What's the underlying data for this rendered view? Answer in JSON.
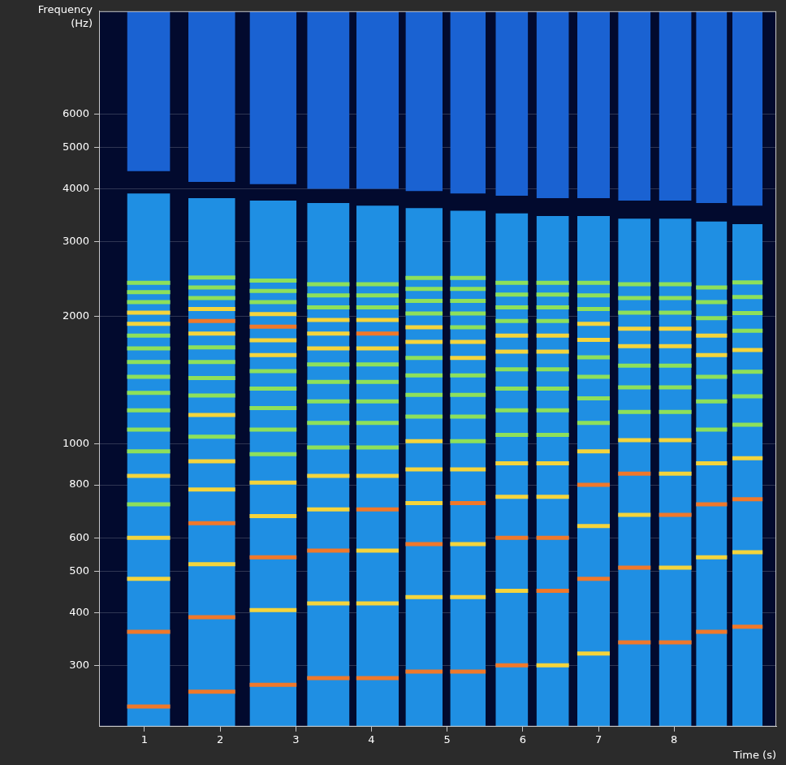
{
  "chart_data": {
    "type": "spectrogram",
    "x_label": "Time (s)",
    "y_label": "Frequency (Hz)",
    "xlim": [
      0.4,
      9.35
    ],
    "xticks": [
      1,
      2,
      3,
      4,
      5,
      6,
      7,
      8
    ],
    "ylim": [
      215,
      10500
    ],
    "yticks": [
      300,
      400,
      500,
      600,
      800,
      1000,
      2000,
      3000,
      4000,
      5000,
      6000
    ],
    "log": "y",
    "grid": true,
    "notes": [
      {
        "start": 0.77,
        "end": 1.34,
        "band": [
          215,
          3900
        ],
        "upper_band": [
          4400,
          10500
        ],
        "harmonics": [
          240,
          360,
          480,
          600,
          720,
          840,
          960,
          1080,
          1200,
          1320,
          1440,
          1560,
          1680,
          1800,
          1920,
          2040,
          2160,
          2280,
          2400
        ],
        "levels": [
          3,
          3,
          2,
          2,
          1,
          2,
          1,
          1,
          1,
          1,
          1,
          1,
          1,
          1,
          2,
          2,
          1,
          1,
          1
        ]
      },
      {
        "start": 1.58,
        "end": 2.2,
        "band": [
          215,
          3800
        ],
        "upper_band": [
          4150,
          10500
        ],
        "harmonics": [
          260,
          390,
          520,
          650,
          780,
          910,
          1040,
          1170,
          1300,
          1430,
          1560,
          1690,
          1820,
          1950,
          2080,
          2210,
          2340,
          2470
        ],
        "levels": [
          3,
          3,
          2,
          3,
          2,
          2,
          1,
          2,
          1,
          1,
          1,
          1,
          2,
          3,
          2,
          1,
          1,
          1
        ]
      },
      {
        "start": 2.39,
        "end": 3.01,
        "band": [
          215,
          3750
        ],
        "upper_band": [
          4100,
          10500
        ],
        "harmonics": [
          270,
          405,
          540,
          675,
          810,
          945,
          1080,
          1215,
          1350,
          1485,
          1620,
          1755,
          1890,
          2025,
          2160,
          2295,
          2430
        ],
        "levels": [
          3,
          2,
          3,
          2,
          2,
          1,
          1,
          1,
          1,
          1,
          2,
          2,
          3,
          2,
          1,
          1,
          1
        ]
      },
      {
        "start": 3.15,
        "end": 3.71,
        "band": [
          215,
          3700
        ],
        "upper_band": [
          4000,
          10500
        ],
        "harmonics": [
          280,
          420,
          560,
          700,
          840,
          980,
          1120,
          1260,
          1400,
          1540,
          1680,
          1820,
          1960,
          2100,
          2240,
          2380
        ],
        "levels": [
          3,
          2,
          3,
          2,
          2,
          1,
          1,
          1,
          1,
          1,
          2,
          2,
          2,
          1,
          1,
          1
        ]
      },
      {
        "start": 3.8,
        "end": 4.36,
        "band": [
          215,
          3650
        ],
        "upper_band": [
          4000,
          10500
        ],
        "harmonics": [
          280,
          420,
          560,
          700,
          840,
          980,
          1120,
          1260,
          1400,
          1540,
          1680,
          1820,
          1960,
          2100,
          2240,
          2380
        ],
        "levels": [
          3,
          2,
          2,
          3,
          2,
          1,
          1,
          1,
          1,
          1,
          2,
          3,
          2,
          1,
          1,
          1
        ]
      },
      {
        "start": 4.45,
        "end": 4.94,
        "band": [
          215,
          3600
        ],
        "upper_band": [
          3950,
          10500
        ],
        "harmonics": [
          290,
          435,
          580,
          725,
          870,
          1015,
          1160,
          1305,
          1450,
          1595,
          1740,
          1885,
          2030,
          2175,
          2320,
          2465
        ],
        "levels": [
          3,
          2,
          3,
          2,
          2,
          2,
          1,
          1,
          1,
          1,
          2,
          2,
          1,
          1,
          1,
          1
        ]
      },
      {
        "start": 5.04,
        "end": 5.51,
        "band": [
          215,
          3550
        ],
        "upper_band": [
          3900,
          10500
        ],
        "harmonics": [
          290,
          435,
          580,
          725,
          870,
          1015,
          1160,
          1305,
          1450,
          1595,
          1740,
          1885,
          2030,
          2175,
          2320,
          2465
        ],
        "levels": [
          3,
          2,
          2,
          3,
          2,
          1,
          1,
          1,
          1,
          2,
          2,
          1,
          1,
          1,
          1,
          1
        ]
      },
      {
        "start": 5.64,
        "end": 6.07,
        "band": [
          215,
          3500
        ],
        "upper_band": [
          3850,
          10500
        ],
        "harmonics": [
          300,
          450,
          600,
          750,
          900,
          1050,
          1200,
          1350,
          1500,
          1650,
          1800,
          1950,
          2100,
          2250,
          2400
        ],
        "levels": [
          3,
          2,
          3,
          2,
          2,
          1,
          1,
          1,
          1,
          2,
          2,
          1,
          1,
          1,
          1
        ]
      },
      {
        "start": 6.18,
        "end": 6.61,
        "band": [
          215,
          3450
        ],
        "upper_band": [
          3800,
          10500
        ],
        "harmonics": [
          300,
          450,
          600,
          750,
          900,
          1050,
          1200,
          1350,
          1500,
          1650,
          1800,
          1950,
          2100,
          2250,
          2400
        ],
        "levels": [
          2,
          3,
          3,
          2,
          2,
          1,
          1,
          1,
          1,
          2,
          2,
          1,
          1,
          1,
          1
        ]
      },
      {
        "start": 6.72,
        "end": 7.15,
        "band": [
          215,
          3450
        ],
        "upper_band": [
          3800,
          10500
        ],
        "harmonics": [
          320,
          480,
          640,
          800,
          960,
          1120,
          1280,
          1440,
          1600,
          1760,
          1920,
          2080,
          2240,
          2400
        ],
        "levels": [
          2,
          3,
          2,
          3,
          2,
          1,
          1,
          1,
          1,
          2,
          2,
          1,
          1,
          1
        ]
      },
      {
        "start": 7.26,
        "end": 7.69,
        "band": [
          215,
          3400
        ],
        "upper_band": [
          3750,
          10500
        ],
        "harmonics": [
          340,
          510,
          680,
          850,
          1020,
          1190,
          1360,
          1530,
          1700,
          1870,
          2040,
          2210,
          2380
        ],
        "levels": [
          3,
          3,
          2,
          3,
          2,
          1,
          1,
          1,
          2,
          2,
          1,
          1,
          1
        ]
      },
      {
        "start": 7.8,
        "end": 8.23,
        "band": [
          215,
          3400
        ],
        "upper_band": [
          3750,
          10500
        ],
        "harmonics": [
          340,
          510,
          680,
          850,
          1020,
          1190,
          1360,
          1530,
          1700,
          1870,
          2040,
          2210,
          2380
        ],
        "levels": [
          3,
          2,
          3,
          2,
          2,
          1,
          1,
          1,
          2,
          2,
          1,
          1,
          1
        ]
      },
      {
        "start": 8.29,
        "end": 8.7,
        "band": [
          215,
          3350
        ],
        "upper_band": [
          3700,
          10500
        ],
        "harmonics": [
          360,
          540,
          720,
          900,
          1080,
          1260,
          1440,
          1620,
          1800,
          1980,
          2160,
          2340
        ],
        "levels": [
          3,
          2,
          3,
          2,
          1,
          1,
          1,
          2,
          2,
          1,
          1,
          1
        ]
      },
      {
        "start": 8.77,
        "end": 9.17,
        "band": [
          215,
          3300
        ],
        "upper_band": [
          3650,
          10500
        ],
        "harmonics": [
          370,
          555,
          740,
          925,
          1110,
          1295,
          1480,
          1665,
          1850,
          2035,
          2220,
          2405
        ],
        "levels": [
          3,
          2,
          3,
          2,
          1,
          1,
          1,
          2,
          1,
          1,
          1,
          1
        ]
      }
    ]
  }
}
